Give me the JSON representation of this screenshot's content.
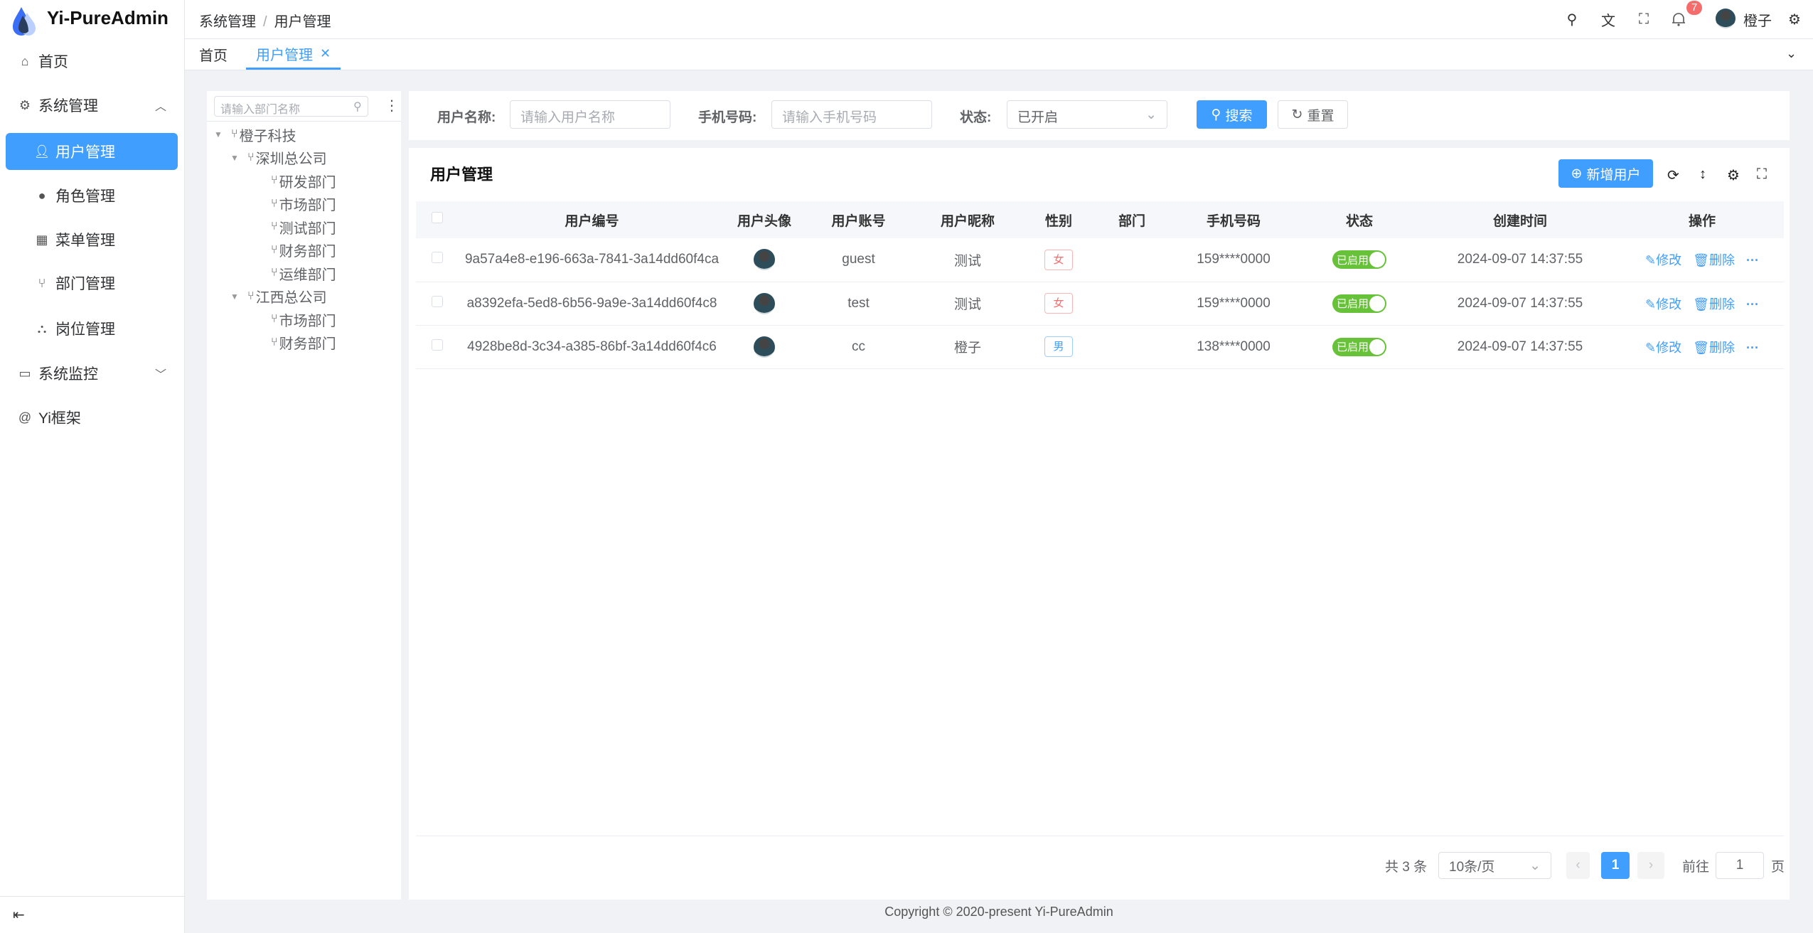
{
  "app": {
    "title": "Yi-PureAdmin",
    "accent": "#409eff"
  },
  "sidebar": {
    "items": [
      {
        "label": "首页",
        "icon": "home-icon"
      },
      {
        "label": "系统管理",
        "icon": "gear-icon",
        "expanded": true
      },
      {
        "label": "用户管理",
        "icon": "user-icon",
        "active": true
      },
      {
        "label": "角色管理",
        "icon": "role-icon"
      },
      {
        "label": "菜单管理",
        "icon": "menu-icon"
      },
      {
        "label": "部门管理",
        "icon": "branch-icon"
      },
      {
        "label": "岗位管理",
        "icon": "org-icon"
      },
      {
        "label": "系统监控",
        "icon": "monitor-icon"
      },
      {
        "label": "Yi框架",
        "icon": "at-icon"
      }
    ]
  },
  "header": {
    "breadcrumb": [
      "系统管理",
      "用户管理"
    ],
    "notification_count": "7",
    "username": "橙子"
  },
  "tabs": [
    {
      "label": "首页"
    },
    {
      "label": "用户管理",
      "active": true
    }
  ],
  "tree": {
    "placeholder": "请输入部门名称",
    "nodes": [
      {
        "label": "橙子科技",
        "level": 0
      },
      {
        "label": "深圳总公司",
        "level": 1
      },
      {
        "label": "研发部门",
        "level": 2
      },
      {
        "label": "市场部门",
        "level": 2
      },
      {
        "label": "测试部门",
        "level": 2
      },
      {
        "label": "财务部门",
        "level": 2
      },
      {
        "label": "运维部门",
        "level": 2
      },
      {
        "label": "江西总公司",
        "level": 1
      },
      {
        "label": "市场部门",
        "level": 2
      },
      {
        "label": "财务部门",
        "level": 2
      }
    ]
  },
  "form": {
    "username_label": "用户名称:",
    "username_placeholder": "请输入用户名称",
    "phone_label": "手机号码:",
    "phone_placeholder": "请输入手机号码",
    "status_label": "状态:",
    "status_value": "已开启",
    "search": "搜索",
    "reset": "重置"
  },
  "table": {
    "title": "用户管理",
    "add_button": "新增用户",
    "columns": [
      "用户编号",
      "用户头像",
      "用户账号",
      "用户昵称",
      "性别",
      "部门",
      "手机号码",
      "状态",
      "创建时间",
      "操作"
    ],
    "rows": [
      {
        "id": "9a57a4e8-e196-663a-7841-3a14dd60f4ca",
        "account": "guest",
        "nickname": "测试",
        "gender": "女",
        "dept": "",
        "phone": "159****0000",
        "status": "已启用",
        "created": "2024-09-07 14:37:55"
      },
      {
        "id": "a8392efa-5ed8-6b56-9a9e-3a14dd60f4c8",
        "account": "test",
        "nickname": "测试",
        "gender": "女",
        "dept": "",
        "phone": "159****0000",
        "status": "已启用",
        "created": "2024-09-07 14:37:55"
      },
      {
        "id": "4928be8d-3c34-a385-86bf-3a14dd60f4c6",
        "account": "cc",
        "nickname": "橙子",
        "gender": "男",
        "dept": "",
        "phone": "138****0000",
        "status": "已启用",
        "created": "2024-09-07 14:37:55"
      }
    ],
    "edit": "修改",
    "delete": "删除"
  },
  "pagination": {
    "total": "共 3 条",
    "page_size": "10条/页",
    "current": "1",
    "goto_label": "前往",
    "goto_value": "1",
    "page_suffix": "页"
  },
  "footer": "Copyright © 2020-present Yi-PureAdmin"
}
